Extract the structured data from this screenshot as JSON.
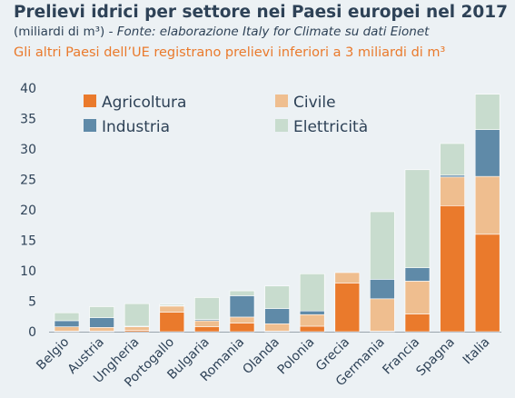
{
  "header": {
    "title": "Prelievi idrici per settore nei Paesi europei nel 2017",
    "subtitle_main": "(miliardi di m³) - ",
    "subtitle_source": "Fonte: elaborazione Italy for Climate su dati Eionet",
    "note": "Gli altri Paesi dell’UE registrano prelievi inferiori a 3 miliardi di m³"
  },
  "colors": {
    "Agricoltura": "#ea7a2c",
    "Civile": "#efbe8f",
    "Industria": "#5f8aa8",
    "Elettricità": "#c8dcce"
  },
  "chart_data": {
    "type": "bar",
    "stacked": true,
    "categories": [
      "Belgio",
      "Austria",
      "Ungheria",
      "Portogallo",
      "Bulgaria",
      "Romania",
      "Olanda",
      "Polonia",
      "Grecia",
      "Germania",
      "Francia",
      "Spagna",
      "Italia"
    ],
    "series": [
      {
        "name": "Agricoltura",
        "values": [
          0.1,
          0.1,
          0.2,
          3.2,
          0.8,
          1.4,
          0.1,
          0.9,
          8.0,
          0.1,
          2.9,
          20.7,
          16.0
        ]
      },
      {
        "name": "Civile",
        "values": [
          0.7,
          0.6,
          0.6,
          1.0,
          1.0,
          1.0,
          1.2,
          1.9,
          1.7,
          5.3,
          5.4,
          4.7,
          9.5
        ]
      },
      {
        "name": "Industria",
        "values": [
          1.0,
          1.6,
          0.1,
          0.1,
          0.2,
          3.5,
          2.5,
          0.6,
          0.0,
          3.2,
          2.2,
          0.3,
          7.7
        ]
      },
      {
        "name": "Elettricità",
        "values": [
          1.3,
          1.8,
          3.7,
          0.2,
          3.6,
          0.8,
          3.7,
          6.1,
          0.0,
          11.1,
          16.1,
          5.2,
          5.8
        ]
      }
    ],
    "ylim": [
      0,
      40
    ],
    "yticks": [
      0,
      5,
      10,
      15,
      20,
      25,
      30,
      35,
      40
    ],
    "legend": "top-left",
    "legend_layout": [
      [
        "Agricoltura",
        "Civile"
      ],
      [
        "Industria",
        "Elettricità"
      ]
    ],
    "grid": false
  }
}
